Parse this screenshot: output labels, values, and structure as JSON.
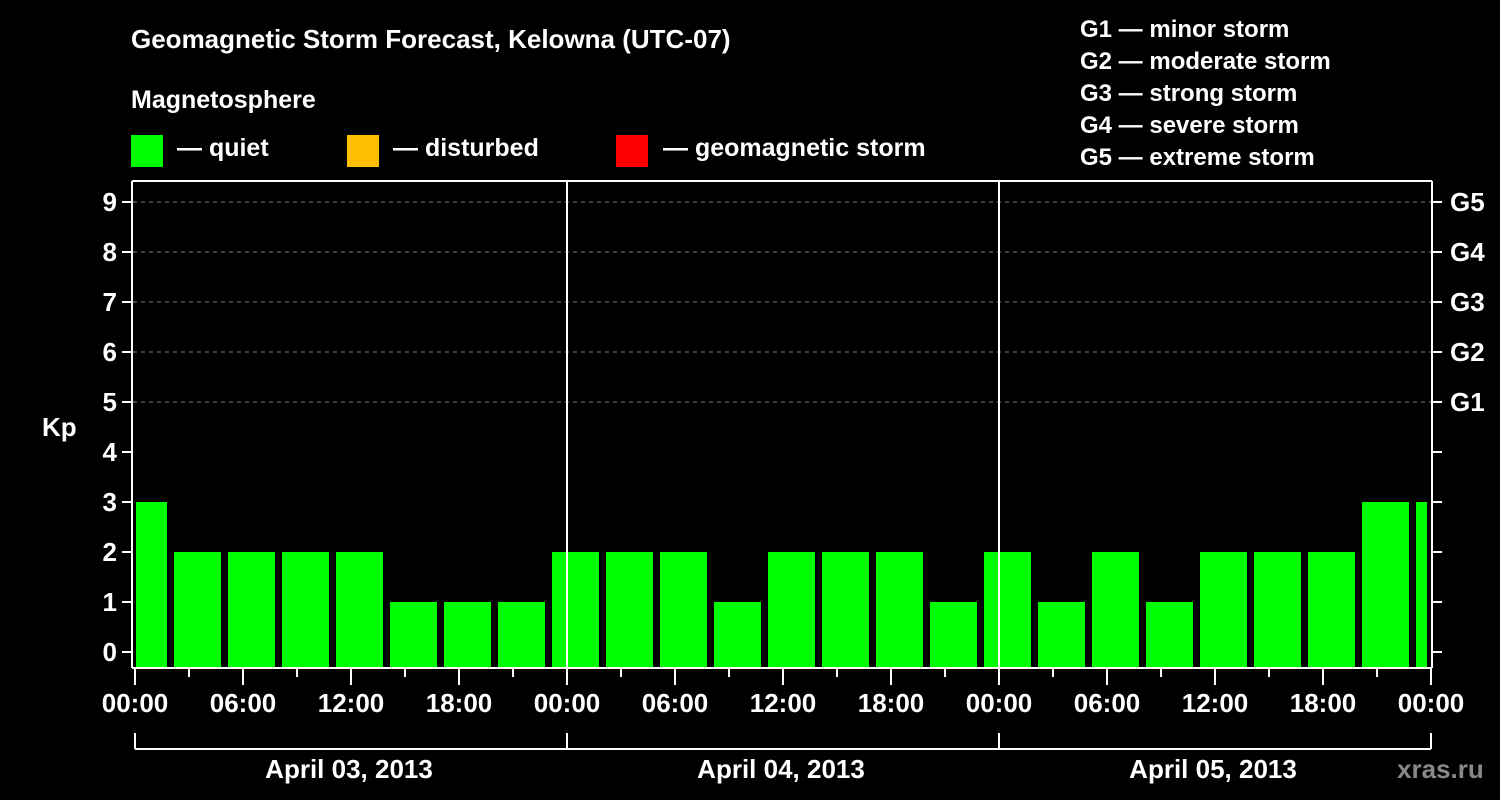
{
  "header": {
    "title": "Geomagnetic Storm Forecast, Kelowna (UTC-07)",
    "section": "Magnetosphere"
  },
  "legend": [
    {
      "color": "#00ff00",
      "label": "— quiet"
    },
    {
      "color": "#ffbf00",
      "label": "— disturbed"
    },
    {
      "color": "#ff0000",
      "label": "— geomagnetic storm"
    }
  ],
  "storm_scale": [
    "G1 — minor storm",
    "G2 — moderate storm",
    "G3 — strong storm",
    "G4 — severe storm",
    "G5 — extreme storm"
  ],
  "axes": {
    "y_label": "Kp",
    "y_ticks": [
      "9",
      "8",
      "7",
      "6",
      "5",
      "4",
      "3",
      "2",
      "1",
      "0"
    ],
    "g_ticks": [
      "G5",
      "G4",
      "G3",
      "G2",
      "G1"
    ],
    "x_ticks": [
      "00:00",
      "06:00",
      "12:00",
      "18:00",
      "00:00",
      "06:00",
      "12:00",
      "18:00",
      "00:00",
      "06:00",
      "12:00",
      "18:00",
      "00:00"
    ],
    "days": [
      "April 03, 2013",
      "April 04, 2013",
      "April 05, 2013"
    ]
  },
  "credit": "xras.ru",
  "chart_data": {
    "type": "bar",
    "title": "Geomagnetic Storm Forecast, Kelowna (UTC-07)",
    "xlabel": "",
    "ylabel": "Kp",
    "ylim": [
      0,
      9
    ],
    "grid": "horizontal dashed at Kp 5-9",
    "right_axis": {
      "5": "G1",
      "6": "G2",
      "7": "G3",
      "8": "G4",
      "9": "G5"
    },
    "legend": [
      "quiet",
      "disturbed",
      "geomagnetic storm"
    ],
    "categories": [
      "Apr03 00:00-02:00",
      "Apr03 02:00",
      "Apr03 05:00",
      "Apr03 08:00",
      "Apr03 11:00",
      "Apr03 14:00",
      "Apr03 17:00",
      "Apr03 20:00",
      "Apr03 23:00",
      "Apr04 02:00",
      "Apr04 05:00",
      "Apr04 08:00",
      "Apr04 11:00",
      "Apr04 14:00",
      "Apr04 17:00",
      "Apr04 20:00",
      "Apr04 23:00",
      "Apr05 02:00",
      "Apr05 05:00",
      "Apr05 08:00",
      "Apr05 11:00",
      "Apr05 14:00",
      "Apr05 17:00",
      "Apr05 20:00",
      "Apr05 23:00"
    ],
    "values": [
      3,
      2,
      2,
      2,
      2,
      1,
      1,
      1,
      2,
      2,
      2,
      1,
      2,
      2,
      2,
      1,
      2,
      1,
      2,
      1,
      2,
      2,
      2,
      3,
      3
    ],
    "status": "quiet (all bars green)"
  }
}
